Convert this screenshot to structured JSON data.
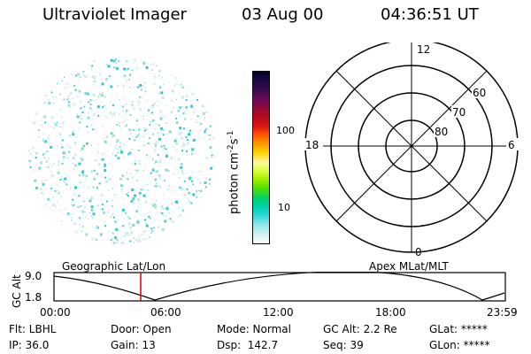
{
  "header": {
    "instrument": "Ultraviolet Imager",
    "date": "03 Aug 00",
    "time": "04:36:51 UT"
  },
  "colorbar": {
    "label": "photon cm",
    "label_exp1": "-2",
    "label_mid": "s",
    "label_exp2": "-1",
    "ticks": [
      "100",
      "10"
    ],
    "colors": [
      "#000033",
      "#1a0a40",
      "#3c0a4e",
      "#6e0a5a",
      "#8c0a3c",
      "#b40a1e",
      "#dc1414",
      "#ff5a00",
      "#ff9a00",
      "#ffd200",
      "#fff8a0",
      "#d8ff3c",
      "#9cf000",
      "#50e000",
      "#00d070",
      "#00d0b0",
      "#30d8d8",
      "#90e8e8",
      "#d0f0f0",
      "#ffffff"
    ]
  },
  "polar_plot": {
    "mlt_labels": {
      "top": "12",
      "bottom": "0",
      "left": "18",
      "right": "6"
    },
    "lat_labels": [
      "60",
      "70",
      "80"
    ]
  },
  "timeline": {
    "left_title": "Geographic Lat/Lon",
    "right_title": "Apex MLat/MLT",
    "ylabel": "GC Alt",
    "ytick_top": "9.0",
    "ytick_bottom": "1.8",
    "xticks": [
      "00:00",
      "06:00",
      "12:00",
      "18:00",
      "23:59"
    ]
  },
  "status": {
    "flt": "Flt: LBHL",
    "door": "Door: Open",
    "mode": "Mode: Normal",
    "gc_alt": "GC Alt: 2.2 Re",
    "glat": "GLat: *****",
    "ip": "IP: 36.0",
    "gain": "Gain: 13",
    "dsp": "Dsp:  142.7",
    "seq": "Seq: 39",
    "glon": "GLon: *****"
  },
  "accent": {
    "cursor": "#e00000",
    "dots": "#50d8d8"
  }
}
